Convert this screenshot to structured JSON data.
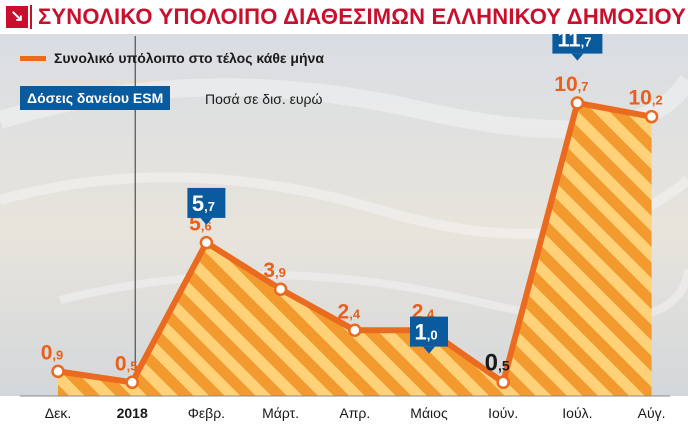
{
  "title": "ΣΥΝΟΛΙΚΟ ΥΠΟΛΟΙΠΟ ΔΙΑΘΕΣΙΜΩΝ ΕΛΛΗΝΙΚΟΥ ΔΗΜΟΣΙΟΥ",
  "legend": {
    "line_label": "Συνολικό υπόλοιπο στο τέλος κάθε μήνα",
    "box_label": "Δόσεις δανείου ESM",
    "units_label": "Ποσά σε δισ. ευρώ"
  },
  "colors": {
    "title": "#c8102e",
    "line": "#ea6a1f",
    "area_stripe_dark": "#f29a2e",
    "area_stripe_light": "#ffd27a",
    "esm_box": "#0a5a9e",
    "label_orange": "#e8601c",
    "label_dark": "#1a1a1a"
  },
  "chart_data": {
    "type": "area",
    "categories": [
      "Δεκ.",
      "2018",
      "Φεβρ.",
      "Μάρτ.",
      "Απρ.",
      "Μάιος",
      "Ιούν.",
      "Ιούλ.",
      "Αύγ."
    ],
    "series": [
      {
        "name": "Συνολικό υπόλοιπο στο τέλος κάθε μήνα",
        "values": [
          0.9,
          0.5,
          5.6,
          3.9,
          2.4,
          2.4,
          0.5,
          10.7,
          10.2
        ],
        "labels": [
          "0,9",
          "0,5",
          "5,6",
          "3,9",
          "2,4",
          "2,4",
          "0,5",
          "10,7",
          "10,2"
        ]
      },
      {
        "name": "Δόσεις δανείου ESM",
        "points": [
          {
            "category": "Φεβρ.",
            "value": 5.7,
            "label": "5,7"
          },
          {
            "category": "Μάιος",
            "value": 1.0,
            "label": "1,0"
          },
          {
            "category": "Ιούλ.",
            "value": 11.7,
            "label": "11,7"
          }
        ]
      }
    ],
    "highlight_label_index": 6,
    "year_marker_category": "2018",
    "ylim": [
      0,
      13
    ]
  }
}
